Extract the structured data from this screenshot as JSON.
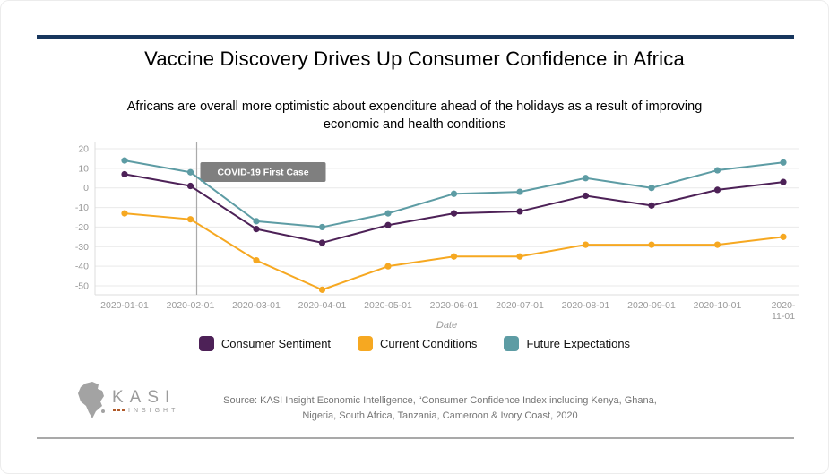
{
  "page": {
    "title": "Vaccine Discovery Drives Up Consumer Confidence in Africa",
    "subtitle_line1": "Africans are overall more optimistic about expenditure ahead of the holidays as a result of improving",
    "subtitle_line2": "economic and health conditions"
  },
  "chart_data": {
    "type": "line",
    "x": [
      "2020-01-01",
      "2020-02-01",
      "2020-03-01",
      "2020-04-01",
      "2020-05-01",
      "2020-06-01",
      "2020-07-01",
      "2020-08-01",
      "2020-09-01",
      "2020-10-01",
      "2020-11-01"
    ],
    "series": [
      {
        "name": "Consumer Sentiment",
        "color": "#4d2157",
        "values": [
          7,
          1,
          -21,
          -28,
          -19,
          -13,
          -12,
          -4,
          -9,
          -1,
          3
        ]
      },
      {
        "name": "Current Conditions",
        "color": "#f6a821",
        "values": [
          -13,
          -16,
          -37,
          -52,
          -40,
          -35,
          -35,
          -29,
          -29,
          -29,
          -25
        ]
      },
      {
        "name": "Future Expectations",
        "color": "#5d9ca4",
        "values": [
          14,
          8,
          -17,
          -20,
          -13,
          -3,
          -2,
          5,
          0,
          9,
          13
        ]
      }
    ],
    "title": "",
    "xlabel": "Date",
    "ylabel": "",
    "y_ticks": [
      20,
      10,
      0,
      -10,
      -20,
      -30,
      -40,
      -50
    ],
    "ylim": [
      -55,
      22
    ],
    "grid": true,
    "legend_position": "bottom",
    "annotation": {
      "label": "COVID-19 First Case",
      "x_index": 1
    }
  },
  "footer": {
    "logo_text": "KASI",
    "logo_subtext": "INSIGHT",
    "source_line1": "Source: KASI Insight Economic Intelligence, “Consumer Confidence Index including Kenya, Ghana,",
    "source_line2": "Nigeria, South Africa, Tanzania, Cameroon & Ivory Coast, 2020"
  }
}
